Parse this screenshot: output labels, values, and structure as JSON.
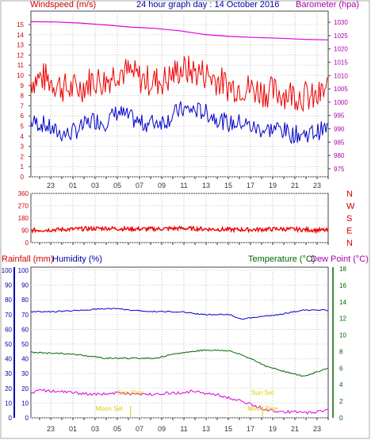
{
  "header": {
    "left_label": "Windspeed (m/s)",
    "center_title": "24 hour graph day : 14 October 2016",
    "right_label": "Barometer (hpa)"
  },
  "lower_header": {
    "rain_label": "Rainfall (mm)",
    "humidity_label": "Humidity (%)",
    "temp_label": "Temperature (°C)",
    "dew_label": "Dew Point (°C)"
  },
  "x_ticks": [
    "23",
    "01",
    "03",
    "05",
    "07",
    "09",
    "11",
    "13",
    "15",
    "17",
    "19",
    "21",
    "23"
  ],
  "compass": [
    "N",
    "W",
    "S",
    "E",
    "N"
  ],
  "colors": {
    "wind_gust": "#ee0000",
    "wind_avg": "#0000cc",
    "barometer": "#dd00dd",
    "direction": "#ee0000",
    "humidity": "#0000cc",
    "temperature": "#006600",
    "dewpoint": "#dd00dd",
    "astro": "#ddcc00",
    "axis_red": "#cc0000",
    "axis_blue": "#0000aa",
    "axis_green": "#006600",
    "axis_magenta": "#aa00aa"
  },
  "chart_data": [
    {
      "type": "line",
      "panel": "wind-barometer",
      "x_range_hours": [
        0,
        24
      ],
      "y_left": {
        "ticks": [
          0,
          1,
          2,
          3,
          4,
          5,
          6,
          7,
          8,
          9,
          10,
          11,
          12,
          13,
          14,
          15
        ],
        "ylim": [
          0,
          15
        ]
      },
      "y_right": {
        "ticks": [
          975,
          980,
          985,
          990,
          995,
          1000,
          1005,
          1010,
          1015,
          1020,
          1025,
          1030
        ],
        "ylim": [
          972,
          1033
        ]
      },
      "series": [
        {
          "name": "",
          "axis": "left",
          "x": [
            0,
            1,
            2,
            3,
            4,
            5,
            6,
            7,
            8,
            9,
            10,
            11,
            12,
            13,
            14,
            15,
            16,
            17,
            18,
            19,
            20,
            21,
            22,
            23,
            24
          ],
          "values": [
            9.5,
            9.8,
            9.2,
            8.6,
            8.8,
            9.6,
            9.4,
            10.5,
            10.2,
            9.6,
            9.4,
            9.6,
            10.6,
            10.4,
            10.2,
            9.6,
            8.9,
            8.9,
            8.6,
            8.4,
            8.3,
            8.2,
            8.0,
            7.6,
            8.8
          ]
        },
        {
          "name": "",
          "axis": "left",
          "x": [
            0,
            1,
            2,
            3,
            4,
            5,
            6,
            7,
            8,
            9,
            10,
            11,
            12,
            13,
            14,
            15,
            16,
            17,
            18,
            19,
            20,
            21,
            22,
            23,
            24
          ],
          "values": [
            5.4,
            5.2,
            4.4,
            4.2,
            4.8,
            5.6,
            5.4,
            6.4,
            5.8,
            5.2,
            5.4,
            5.6,
            6.6,
            6.6,
            6.4,
            5.8,
            5.2,
            5.4,
            4.8,
            4.6,
            4.8,
            4.2,
            4.2,
            4.4,
            4.8
          ]
        },
        {
          "name": "",
          "axis": "right",
          "x": [
            0,
            2,
            4,
            6,
            8,
            10,
            12,
            14,
            16,
            18,
            20,
            22,
            24
          ],
          "values": [
            1030.2,
            1030.1,
            1029.7,
            1029.0,
            1028.2,
            1027.7,
            1026.8,
            1025.4,
            1024.7,
            1024.3,
            1024.0,
            1023.6,
            1023.4
          ]
        }
      ]
    },
    {
      "type": "scatter",
      "panel": "wind-direction",
      "y_ticks": [
        0,
        90,
        180,
        270,
        360
      ],
      "ylim": [
        0,
        360
      ],
      "series": [
        {
          "name": "",
          "x": [
            0,
            2,
            4,
            6,
            8,
            10,
            12,
            14,
            16,
            18,
            20,
            22,
            23.8
          ],
          "values": [
            90,
            95,
            100,
            105,
            100,
            100,
            105,
            100,
            95,
            95,
            100,
            95,
            90
          ]
        }
      ]
    },
    {
      "type": "line",
      "panel": "humidity-temperature",
      "y_left": {
        "ticks": [
          0,
          10,
          20,
          30,
          40,
          50,
          60,
          70,
          80,
          90,
          100
        ],
        "ylim": [
          0,
          100
        ]
      },
      "y_right": {
        "ticks": [
          0,
          2,
          4,
          6,
          8,
          10,
          12,
          14,
          16,
          18
        ],
        "ylim": [
          0,
          18
        ]
      },
      "series": [
        {
          "name": "",
          "axis": "left",
          "x": [
            0,
            2,
            4,
            6,
            7,
            8,
            10,
            12,
            14,
            16,
            17,
            18,
            20,
            22,
            24
          ],
          "values": [
            72,
            72,
            73,
            74,
            74,
            73,
            72,
            72,
            70,
            70,
            67,
            68,
            70,
            73,
            73
          ]
        },
        {
          "name": "",
          "axis": "right",
          "x": [
            0,
            2,
            4,
            6,
            8,
            10,
            12,
            14,
            16,
            17,
            18,
            19,
            20,
            21,
            22,
            24
          ],
          "values": [
            7.9,
            7.8,
            7.6,
            7.2,
            7.2,
            7.2,
            7.8,
            8.2,
            8.1,
            7.6,
            7.0,
            6.2,
            5.8,
            5.4,
            5.0,
            6.0
          ]
        },
        {
          "name": "",
          "axis": "right",
          "x": [
            0,
            1,
            3,
            5,
            7,
            9,
            11,
            12,
            13,
            14,
            15,
            16,
            17,
            18,
            19,
            20,
            21,
            22,
            23,
            24
          ],
          "values": [
            3.1,
            3.3,
            3.1,
            2.8,
            3.0,
            2.8,
            3.0,
            3.0,
            3.2,
            3.0,
            2.8,
            2.4,
            2.0,
            1.5,
            1.0,
            0.8,
            0.7,
            0.6,
            0.7,
            1.0
          ]
        }
      ]
    }
  ],
  "astro": [
    {
      "label": "Moon Set",
      "hour": 8.05
    },
    {
      "label": "Sun Rise",
      "hour": 8.05
    },
    {
      "label": "Sun Set",
      "hour": 18.7
    },
    {
      "label": "Moon Rise",
      "hour": 18.7
    }
  ]
}
